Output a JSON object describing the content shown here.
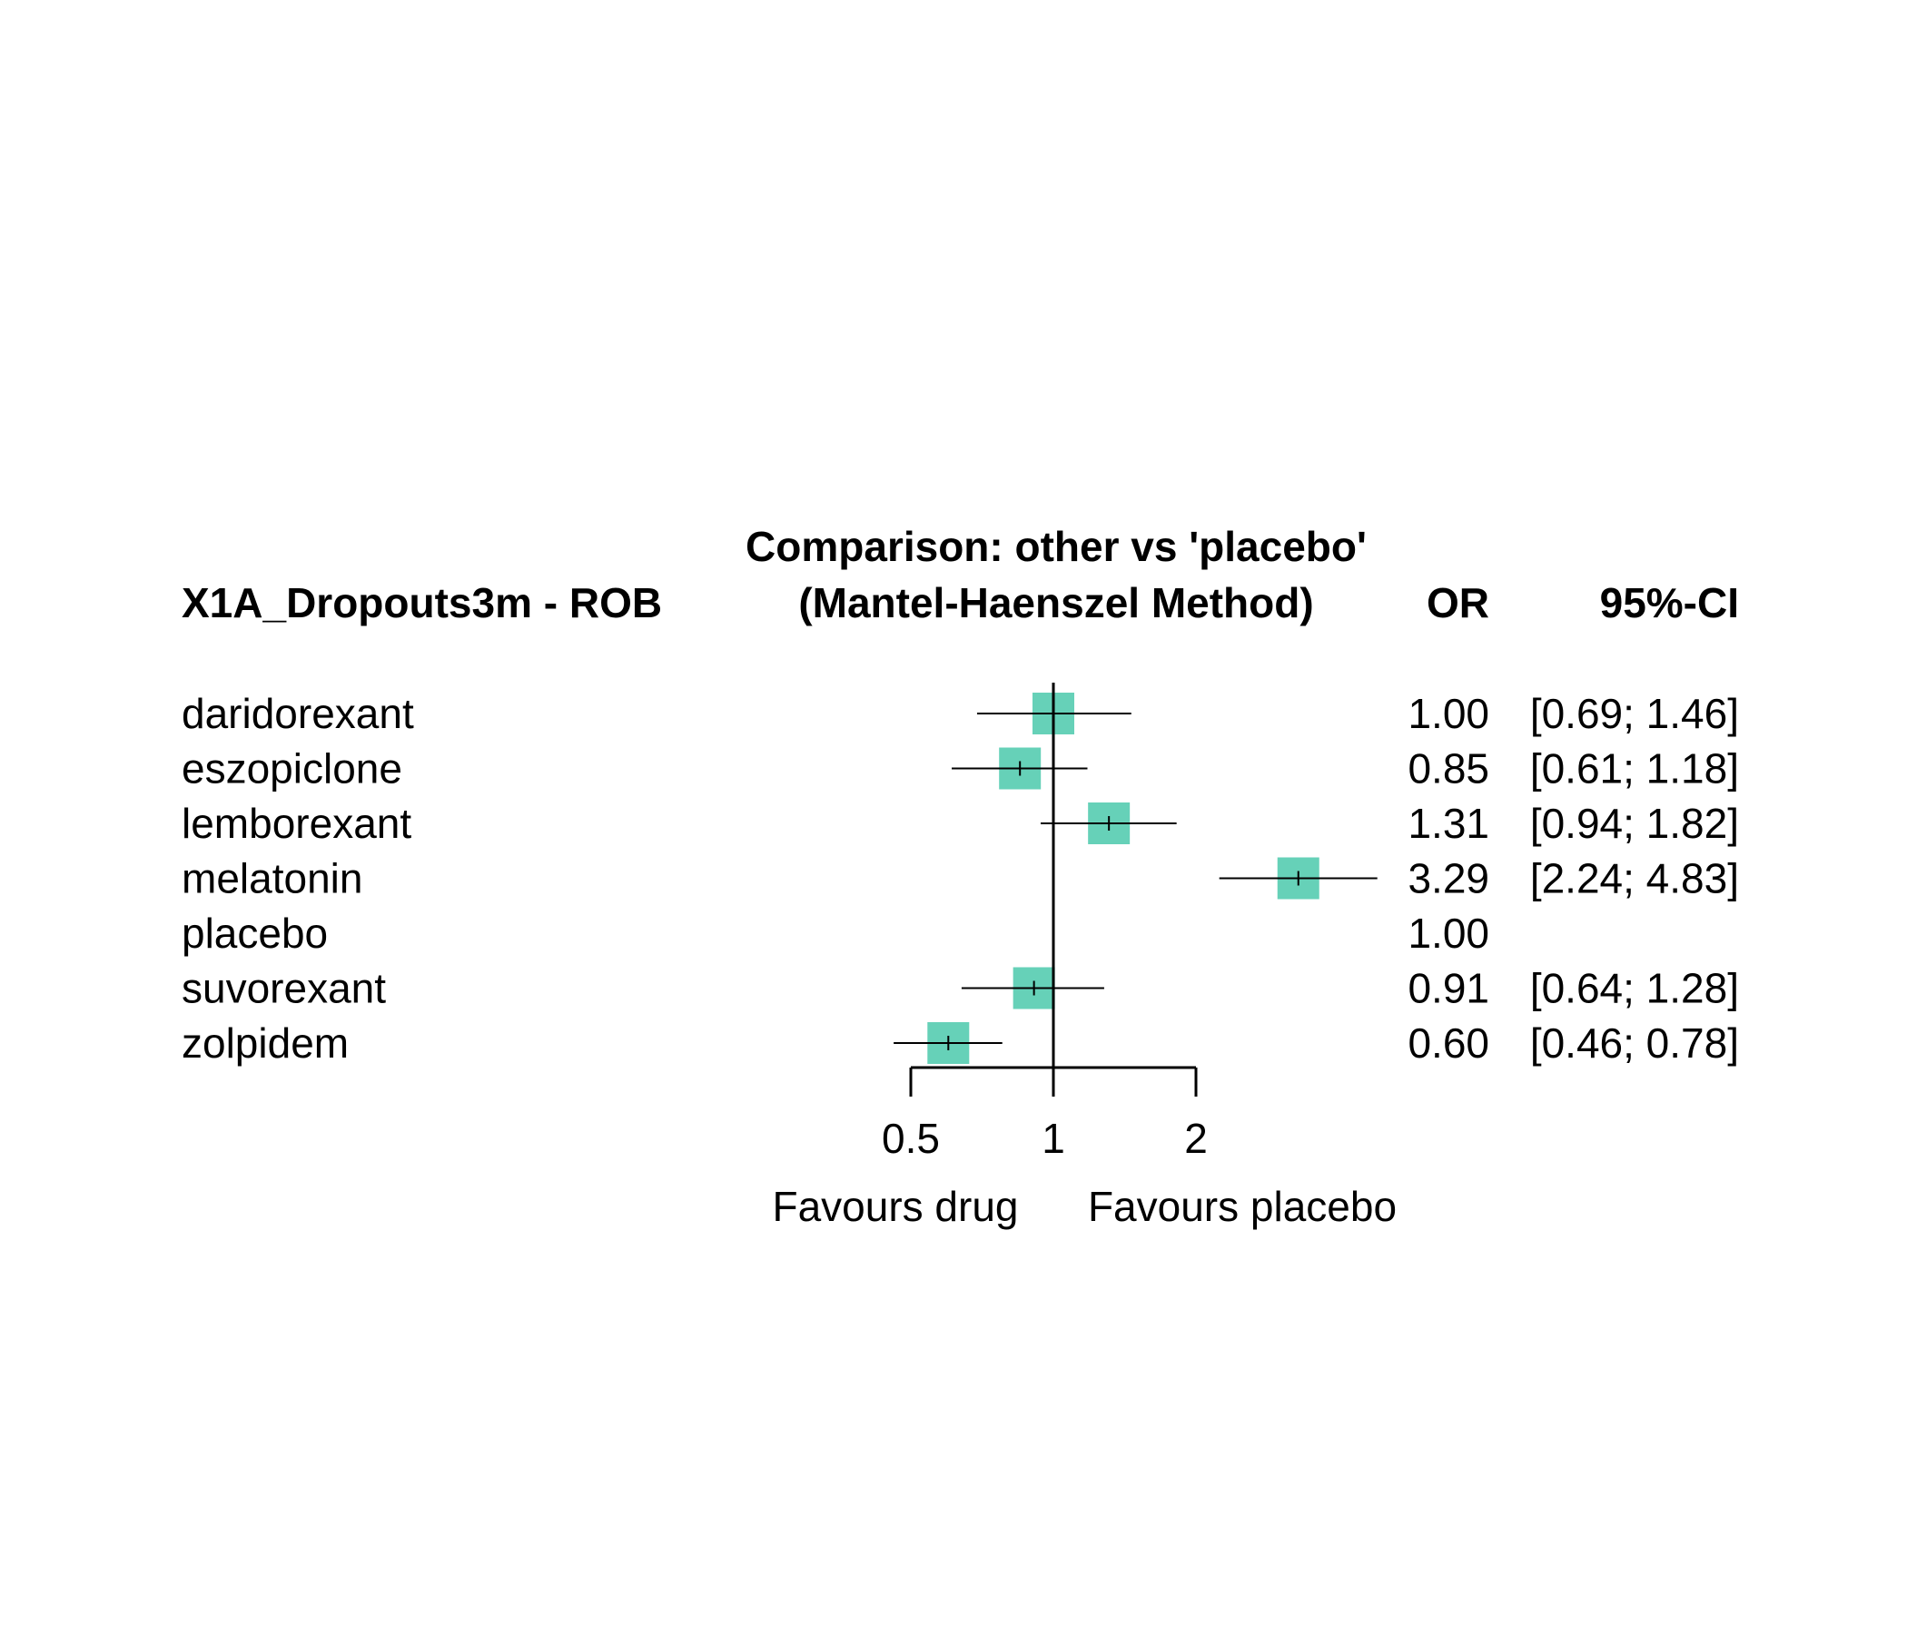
{
  "chart_data": {
    "type": "forest",
    "title_line1": "Comparison: other vs 'placebo'",
    "title_line2": "(Mantel-Haenszel Method)",
    "outcome_label": "X1A_Dropouts3m - ROB",
    "col_or": "OR",
    "col_ci": "95%-CI",
    "x_scale": "log",
    "reference_value": 1,
    "x_ticks": [
      0.5,
      1,
      2
    ],
    "x_tick_labels": [
      "0.5",
      "1",
      "2"
    ],
    "favours_left": "Favours drug",
    "favours_right": "Favours placebo",
    "box_color": "#66d1b8",
    "rows": [
      {
        "label": "daridorexant",
        "or": 1.0,
        "lower": 0.69,
        "upper": 1.46,
        "or_text": "1.00",
        "ci_text": "[0.69; 1.46]"
      },
      {
        "label": "eszopiclone",
        "or": 0.85,
        "lower": 0.61,
        "upper": 1.18,
        "or_text": "0.85",
        "ci_text": "[0.61; 1.18]"
      },
      {
        "label": "lemborexant",
        "or": 1.31,
        "lower": 0.94,
        "upper": 1.82,
        "or_text": "1.31",
        "ci_text": "[0.94; 1.82]"
      },
      {
        "label": "melatonin",
        "or": 3.29,
        "lower": 2.24,
        "upper": 4.83,
        "or_text": "3.29",
        "ci_text": "[2.24; 4.83]"
      },
      {
        "label": "placebo",
        "or": 1.0,
        "lower": null,
        "upper": null,
        "or_text": "1.00",
        "ci_text": ""
      },
      {
        "label": "suvorexant",
        "or": 0.91,
        "lower": 0.64,
        "upper": 1.28,
        "or_text": "0.91",
        "ci_text": "[0.64; 1.28]"
      },
      {
        "label": "zolpidem",
        "or": 0.6,
        "lower": 0.46,
        "upper": 0.78,
        "or_text": "0.60",
        "ci_text": "[0.46; 0.78]"
      }
    ]
  }
}
